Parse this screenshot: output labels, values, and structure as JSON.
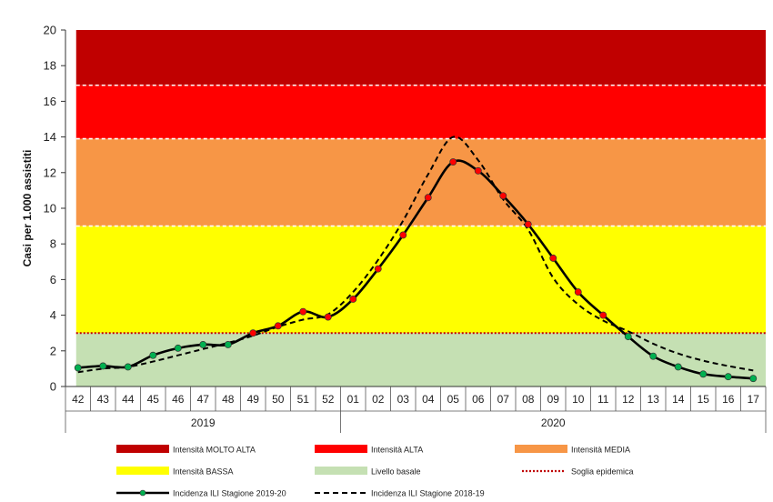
{
  "chart_data": {
    "type": "line",
    "ylabel": "Casi per 1.000 assistiti",
    "ylim": [
      0,
      20
    ],
    "yticks": [
      "0",
      "2",
      "4",
      "6",
      "8",
      "10",
      "12",
      "14",
      "16",
      "18",
      "20"
    ],
    "categories": [
      "42",
      "43",
      "44",
      "45",
      "46",
      "47",
      "48",
      "49",
      "50",
      "51",
      "52",
      "01",
      "02",
      "03",
      "04",
      "05",
      "06",
      "07",
      "08",
      "09",
      "10",
      "11",
      "12",
      "13",
      "14",
      "15",
      "16",
      "17"
    ],
    "years": [
      {
        "label": "2019",
        "from": 0,
        "to": 10
      },
      {
        "label": "2020",
        "from": 11,
        "to": 27
      }
    ],
    "bands": [
      {
        "name": "Intensità MOLTO ALTA",
        "from": 16.9,
        "to": 20,
        "color": "#c00000"
      },
      {
        "name": "Intensità ALTA",
        "from": 13.9,
        "to": 16.9,
        "color": "#ff0000"
      },
      {
        "name": "Intensità MEDIA",
        "from": 9.0,
        "to": 13.9,
        "color": "#f79646"
      },
      {
        "name": "Intensità BASSA",
        "from": 3.0,
        "to": 9.0,
        "color": "#ffff00"
      },
      {
        "name": "Livello basale",
        "from": 0,
        "to": 3.0,
        "color": "#c5e0b3"
      }
    ],
    "threshold": {
      "name": "Soglia epidemica",
      "value": 3.0,
      "color": "#c00000"
    },
    "series": [
      {
        "name": "Incidenza ILI Stagione 2019-20",
        "style": "solid",
        "values": [
          1.05,
          1.15,
          1.1,
          1.75,
          2.15,
          2.35,
          2.35,
          3.0,
          3.4,
          4.2,
          3.9,
          4.9,
          6.6,
          8.5,
          10.6,
          12.6,
          12.1,
          10.7,
          9.1,
          7.2,
          5.3,
          4.0,
          2.8,
          1.7,
          1.1,
          0.7,
          0.55,
          0.45
        ],
        "marker_colors": [
          "#00b050",
          "#00b050",
          "#00b050",
          "#00b050",
          "#00b050",
          "#00b050",
          "#00b050",
          "#ff0000",
          "#ff0000",
          "#ff0000",
          "#ff0000",
          "#ff0000",
          "#ff0000",
          "#ff0000",
          "#ff0000",
          "#ff0000",
          "#ff0000",
          "#ff0000",
          "#ff0000",
          "#ff0000",
          "#ff0000",
          "#ff0000",
          "#00b050",
          "#00b050",
          "#00b050",
          "#00b050",
          "#00b050",
          "#00b050"
        ]
      },
      {
        "name": "Incidenza ILI Stagione 2018-19",
        "style": "dashed",
        "values": [
          0.8,
          1.0,
          1.1,
          1.4,
          1.75,
          2.1,
          2.45,
          2.85,
          3.35,
          3.75,
          4.05,
          5.3,
          7.1,
          9.3,
          11.9,
          14.0,
          12.7,
          10.5,
          8.8,
          6.1,
          4.6,
          3.7,
          3.1,
          2.4,
          1.85,
          1.45,
          1.15,
          0.9
        ]
      }
    ],
    "legend": [
      {
        "label": "Intensità MOLTO ALTA",
        "kind": "box",
        "color": "#c00000"
      },
      {
        "label": "Intensità ALTA",
        "kind": "box",
        "color": "#ff0000"
      },
      {
        "label": "Intensità MEDIA",
        "kind": "box",
        "color": "#f79646"
      },
      {
        "label": "Intensità BASSA",
        "kind": "box",
        "color": "#ffff00"
      },
      {
        "label": "Livello basale",
        "kind": "box",
        "color": "#c5e0b3"
      },
      {
        "label": "Soglia epidemica",
        "kind": "dotted",
        "color": "#c00000"
      },
      {
        "label": "Incidenza ILI Stagione 2019-20",
        "kind": "line-marker",
        "color": "#000000"
      },
      {
        "label": "Incidenza ILI Stagione 2018-19",
        "kind": "dashed",
        "color": "#000000"
      }
    ]
  }
}
